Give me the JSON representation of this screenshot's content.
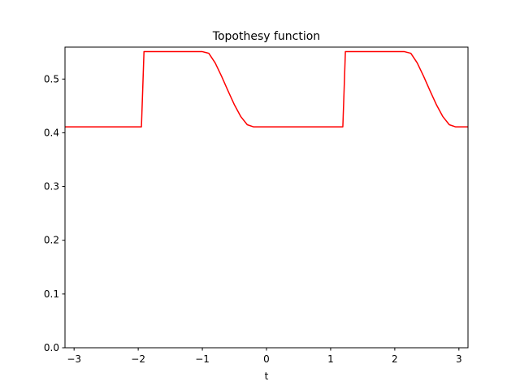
{
  "chart_data": {
    "type": "line",
    "title": "Topothesy function",
    "xlabel": "t",
    "ylabel": "",
    "xlim": [
      -3.1416,
      3.1416
    ],
    "ylim": [
      0.0,
      0.5594
    ],
    "grid": false,
    "xticks": [
      -3,
      -2,
      -1,
      0,
      1,
      2,
      3
    ],
    "xtick_labels": [
      "−3",
      "−2",
      "−1",
      "0",
      "1",
      "2",
      "3"
    ],
    "yticks": [
      0.0,
      0.1,
      0.2,
      0.3,
      0.4,
      0.5
    ],
    "ytick_labels": [
      "0.0",
      "0.1",
      "0.2",
      "0.3",
      "0.4",
      "0.5"
    ],
    "series": [
      {
        "color": "#ff0000",
        "x": [
          -3.1416,
          -1.95,
          -1.93,
          -1.91,
          -1.0,
          -0.9,
          -0.8,
          -0.7,
          -0.6,
          -0.5,
          -0.4,
          -0.3,
          -0.2,
          -0.1,
          1.19,
          1.21,
          1.23,
          2.15,
          2.25,
          2.35,
          2.45,
          2.55,
          2.65,
          2.75,
          2.85,
          2.95,
          3.05,
          3.1416
        ],
        "values": [
          0.411,
          0.411,
          0.48,
          0.551,
          0.551,
          0.548,
          0.53,
          0.505,
          0.478,
          0.452,
          0.43,
          0.415,
          0.411,
          0.411,
          0.411,
          0.48,
          0.551,
          0.551,
          0.548,
          0.53,
          0.505,
          0.478,
          0.452,
          0.43,
          0.415,
          0.411,
          0.411,
          0.411
        ]
      }
    ]
  }
}
